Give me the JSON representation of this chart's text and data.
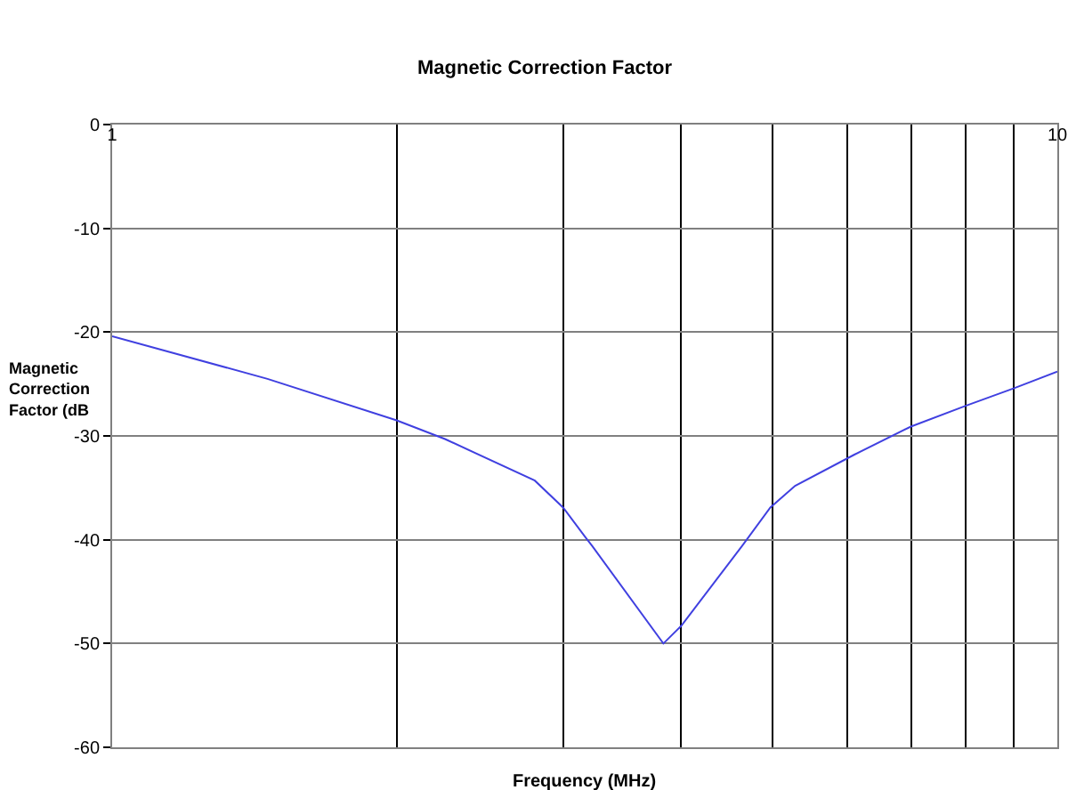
{
  "chart_data": {
    "type": "line",
    "title": "Magnetic Correction Factor",
    "xlabel": "Frequency (MHz)",
    "ylabel": "Magnetic Correction Factor (dB",
    "x": [
      1,
      1.46,
      2,
      2.25,
      2.8,
      3.0,
      3.17,
      3.22,
      3.83,
      4.0,
      4.64,
      4.97,
      5.28,
      6.1,
      7.0,
      8.0,
      9.0,
      10
    ],
    "series": [
      {
        "color": "#4040e0",
        "values": [
          -20.4,
          -24.5,
          -28.5,
          -30.3,
          -34.3,
          -36.9,
          -39.8,
          -40.6,
          -50,
          -48.3,
          -40.6,
          -36.9,
          -34.8,
          -31.8,
          -29.1,
          -27.1,
          -25.4,
          -23.8
        ]
      }
    ],
    "log": "x",
    "xlim": [
      1,
      10
    ],
    "xticks": [
      {
        "value": 1,
        "label": "1"
      },
      {
        "value": 2,
        "label": null
      },
      {
        "value": 3,
        "label": null
      },
      {
        "value": 4,
        "label": null
      },
      {
        "value": 5,
        "label": null
      },
      {
        "value": 6,
        "label": null
      },
      {
        "value": 7,
        "label": null
      },
      {
        "value": 8,
        "label": null
      },
      {
        "value": 9,
        "label": null
      },
      {
        "value": 10,
        "label": "10"
      }
    ],
    "ylim": [
      -60,
      0
    ],
    "yticks": [
      -60,
      -50,
      -40,
      -30,
      -20,
      -10,
      0
    ],
    "grid": true,
    "marker": "none",
    "line_style": "solid"
  }
}
